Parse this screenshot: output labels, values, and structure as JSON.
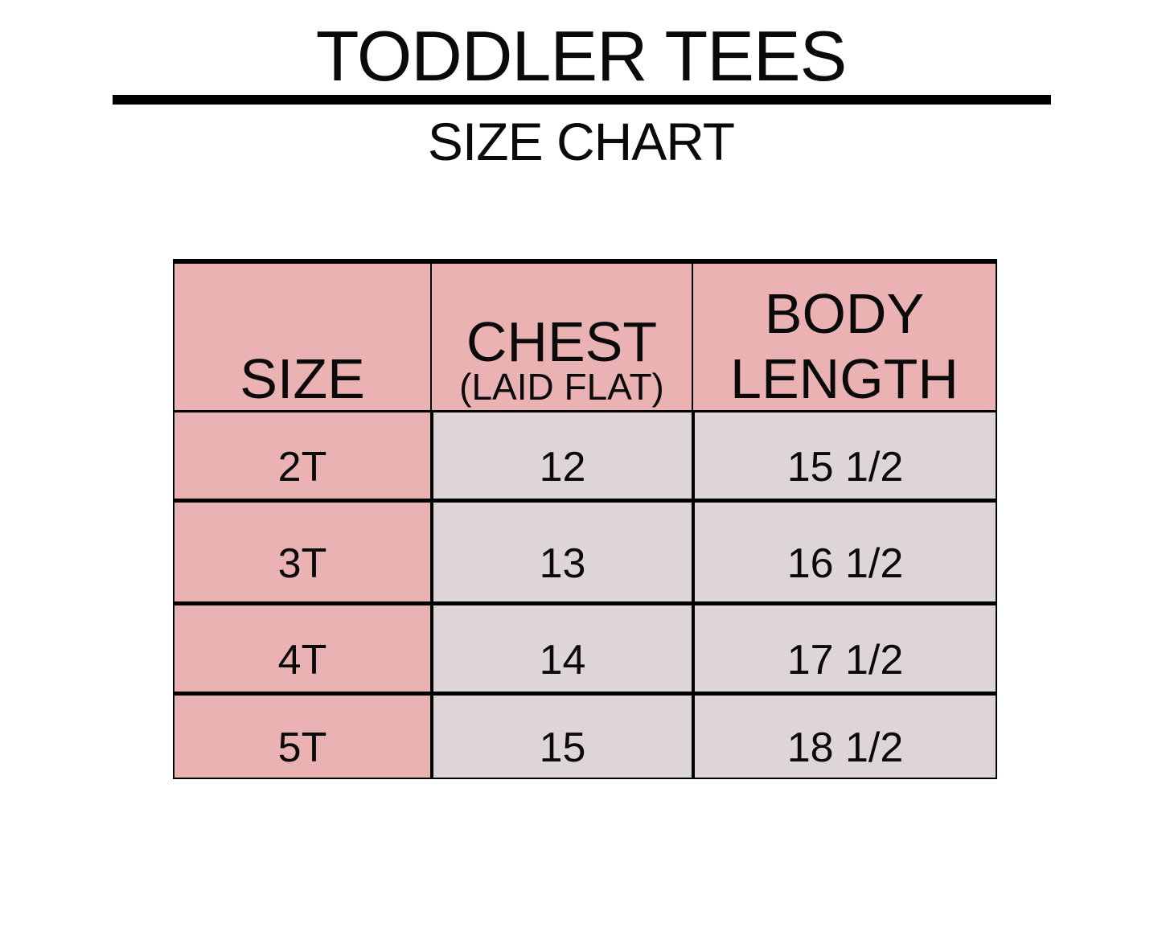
{
  "title": "TODDLER TEES",
  "subtitle": "SIZE CHART",
  "colors": {
    "header": "#ebb2b3",
    "size_column": "#ebb2b3",
    "values": "#ddd5d6",
    "border": "#000000"
  },
  "table": {
    "headers": {
      "size": "SIZE",
      "chest": "CHEST",
      "chest_note": "(LAID FLAT)",
      "body_length_line1": "BODY",
      "body_length_line2": "LENGTH"
    },
    "rows": [
      {
        "size": "2T",
        "chest": "12",
        "body_length": "15 1/2"
      },
      {
        "size": "3T",
        "chest": "13",
        "body_length": "16 1/2"
      },
      {
        "size": "4T",
        "chest": "14",
        "body_length": "17 1/2"
      },
      {
        "size": "5T",
        "chest": "15",
        "body_length": "18 1/2"
      }
    ]
  }
}
